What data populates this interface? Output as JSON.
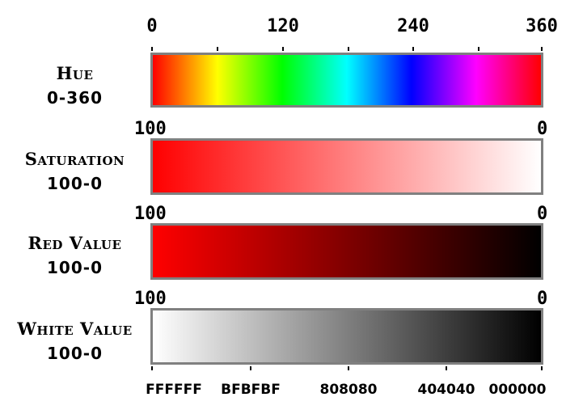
{
  "top_axis": {
    "labels": [
      "0",
      "120",
      "240",
      "360"
    ]
  },
  "rows": [
    {
      "name": "Hue",
      "range": "0-360",
      "gradient": [
        "#ff0000",
        "#ffff00",
        "#00ff00",
        "#00ffff",
        "#0000ff",
        "#ff00ff",
        "#ff0000"
      ]
    },
    {
      "name": "Saturation",
      "range": "100-0",
      "left_label": "100",
      "right_label": "0",
      "gradient": [
        "#ff0000",
        "#ffffff"
      ]
    },
    {
      "name": "Red Value",
      "range": "100-0",
      "left_label": "100",
      "right_label": "0",
      "gradient": [
        "#ff0000",
        "#000000"
      ]
    },
    {
      "name": "White Value",
      "range": "100-0",
      "left_label": "100",
      "right_label": "0",
      "gradient": [
        "#ffffff",
        "#000000"
      ]
    }
  ],
  "bottom_axis": {
    "labels": [
      "FFFFFF",
      "BFBFBF",
      "808080",
      "404040",
      "000000"
    ]
  },
  "colors": {
    "bar_border": "#808080"
  }
}
